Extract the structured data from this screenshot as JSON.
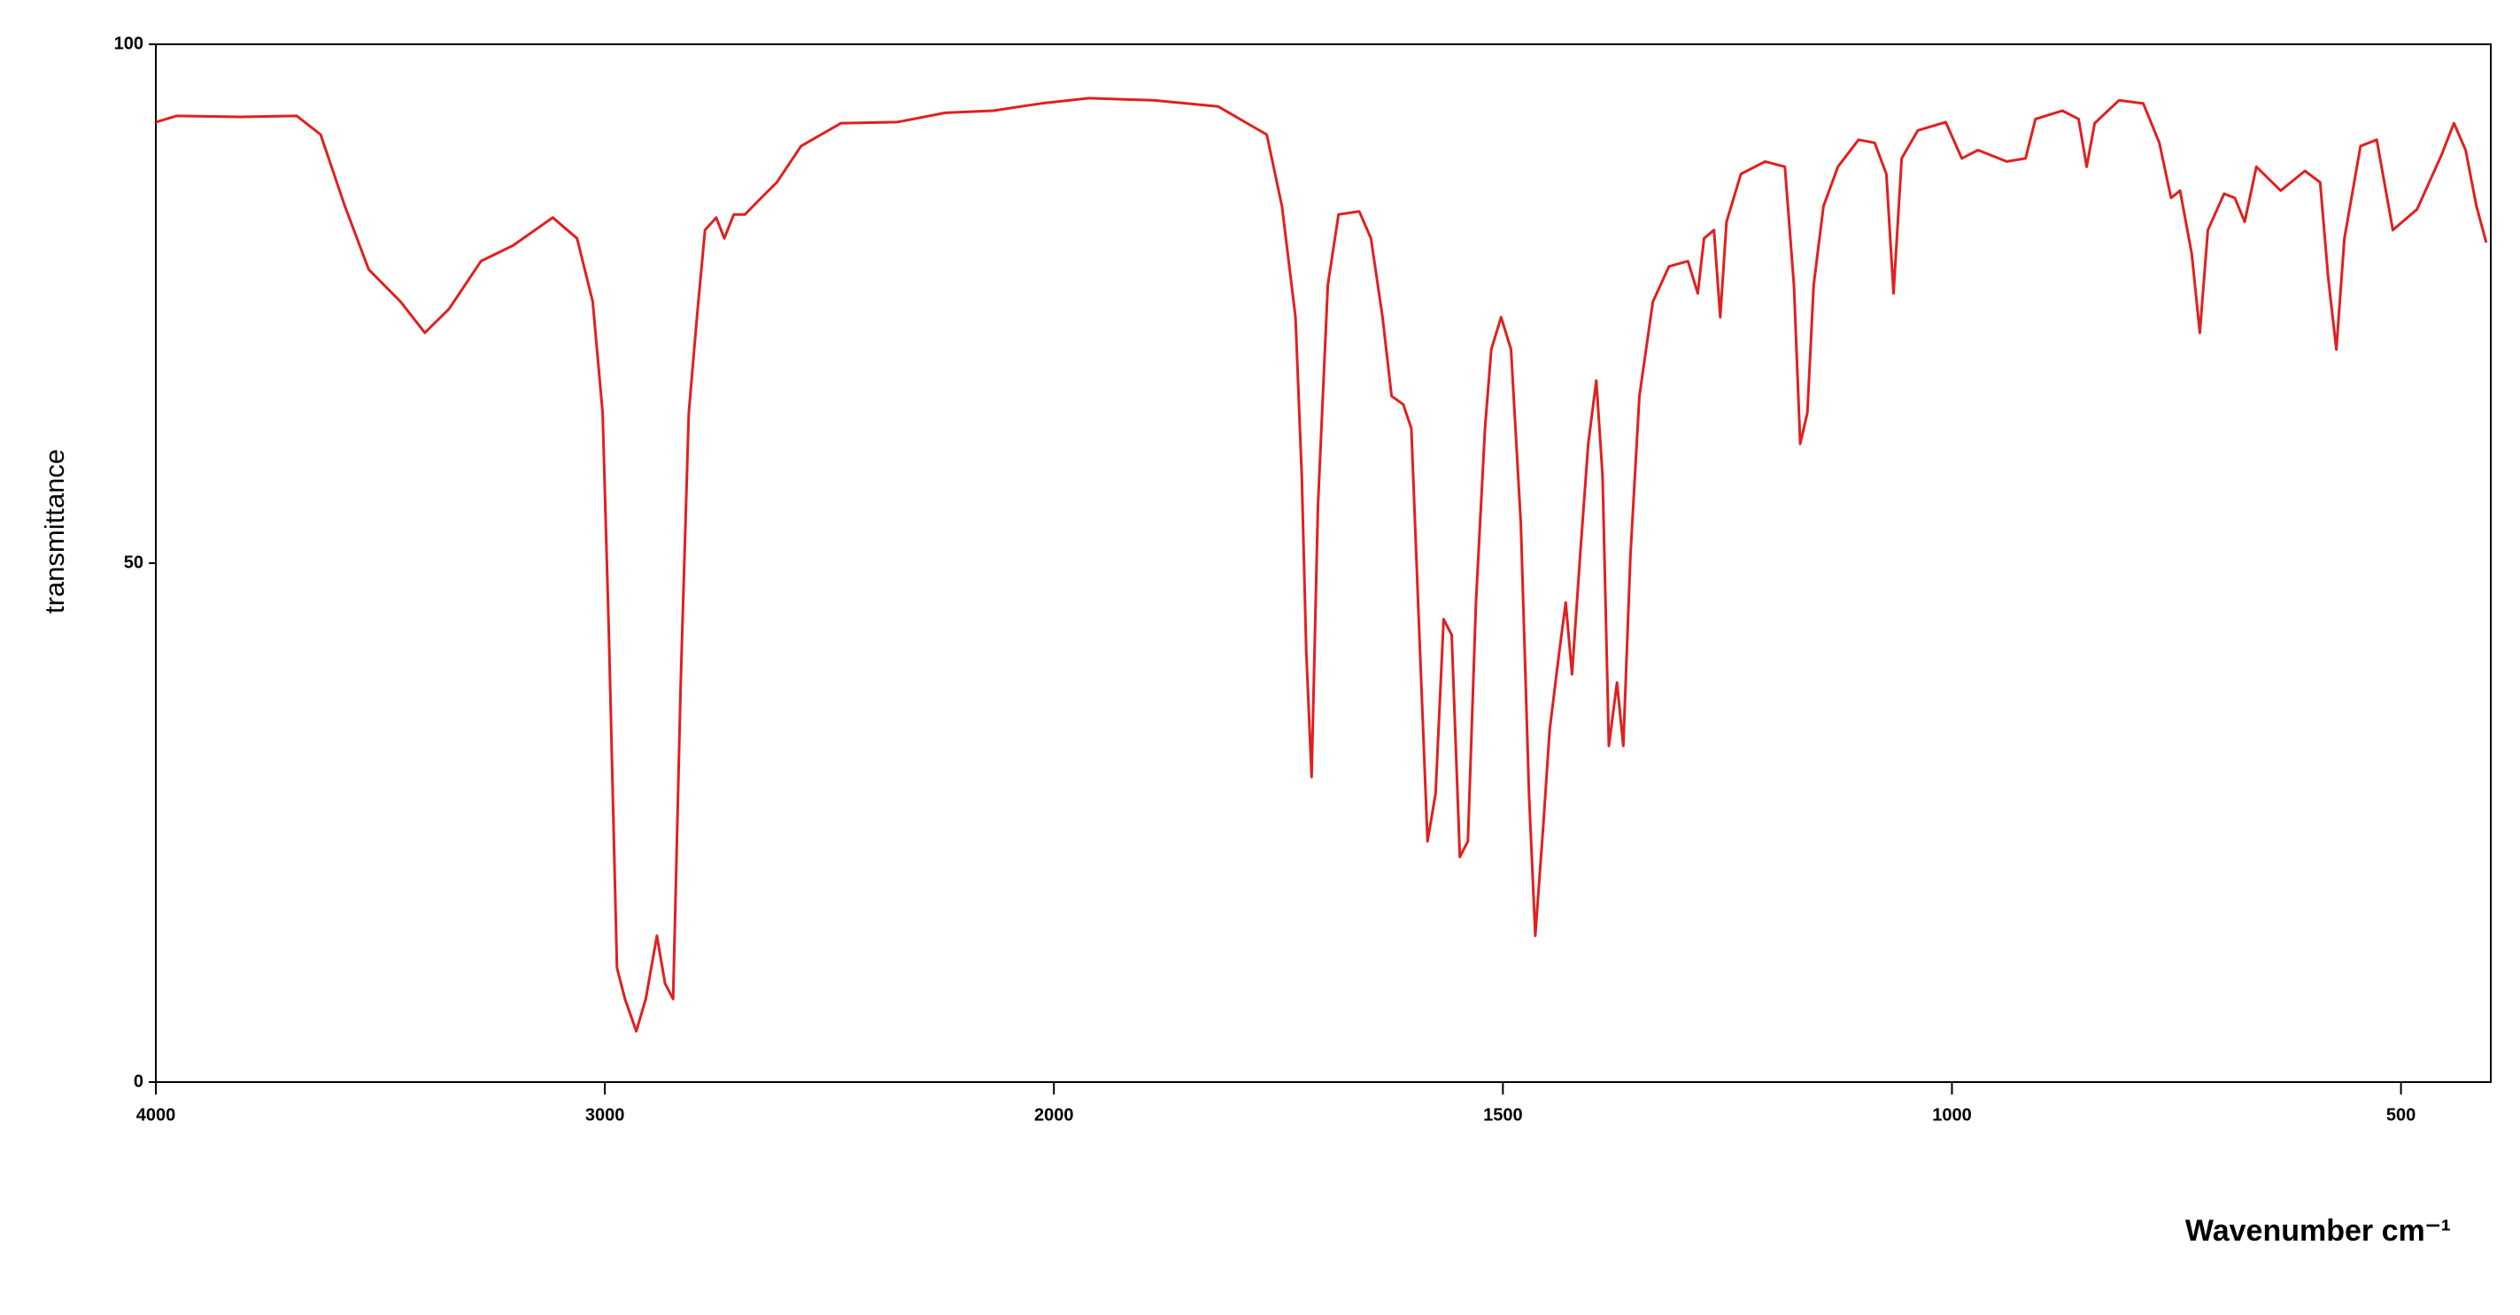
{
  "chart_data": {
    "type": "line",
    "xlabel": "Wavenumber cm⁻¹",
    "ylabel": "transmittance",
    "color": "#e0201f",
    "xlim": [
      4000,
      400
    ],
    "x_scale_change": {
      "at": 2000,
      "factor": 2
    },
    "ylim": [
      0,
      100
    ],
    "xticks": [
      4000,
      3000,
      2000,
      1500,
      1000,
      500
    ],
    "yticks": [
      0,
      50,
      100
    ],
    "x": [
      4000,
      3954,
      3811,
      3686,
      3633,
      3579,
      3526,
      3455,
      3401,
      3347,
      3276,
      3205,
      3116,
      3062,
      3027,
      3005,
      2991,
      2973,
      2955,
      2930,
      2909,
      2884,
      2866,
      2848,
      2831,
      2813,
      2795,
      2777,
      2752,
      2734,
      2713,
      2688,
      2652,
      2617,
      2563,
      2474,
      2349,
      2242,
      2135,
      2028,
      1961,
      1889,
      1817,
      1763,
      1746,
      1731,
      1724,
      1719,
      1713,
      1706,
      1695,
      1683,
      1660,
      1647,
      1634,
      1624,
      1611,
      1602,
      1593,
      1584,
      1575,
      1566,
      1557,
      1548,
      1539,
      1530,
      1520,
      1513,
      1502,
      1491,
      1480,
      1471,
      1464,
      1455,
      1448,
      1437,
      1430,
      1423,
      1414,
      1405,
      1396,
      1389,
      1382,
      1373,
      1366,
      1358,
      1348,
      1333,
      1315,
      1294,
      1283,
      1276,
      1265,
      1258,
      1251,
      1235,
      1208,
      1186,
      1176,
      1169,
      1161,
      1154,
      1143,
      1127,
      1104,
      1086,
      1073,
      1065,
      1056,
      1038,
      1007,
      989,
      971,
      939,
      918,
      907,
      877,
      859,
      850,
      841,
      814,
      787,
      769,
      756,
      746,
      733,
      724,
      715,
      697,
      685,
      674,
      661,
      634,
      607,
      590,
      581,
      572,
      563,
      545,
      527,
      509,
      482,
      455,
      441,
      428,
      416,
      405
    ],
    "values": [
      92.5,
      93.1,
      93.0,
      93.1,
      91.3,
      84.4,
      78.3,
      75.2,
      72.2,
      74.5,
      79.1,
      80.6,
      83.3,
      81.3,
      75.2,
      64.5,
      43.1,
      11.0,
      8.0,
      4.9,
      8.0,
      14.1,
      9.5,
      8.0,
      38.5,
      64.5,
      73.7,
      82.1,
      83.3,
      81.3,
      83.6,
      83.6,
      85.2,
      86.7,
      90.2,
      92.4,
      92.5,
      93.4,
      93.6,
      94.3,
      94.8,
      94.6,
      94.0,
      91.3,
      84.4,
      73.7,
      58.4,
      41.6,
      29.4,
      55.4,
      76.8,
      83.6,
      83.9,
      81.3,
      73.7,
      66.1,
      65.3,
      63.0,
      43.1,
      23.2,
      27.8,
      44.6,
      43.1,
      21.7,
      23.2,
      46.2,
      63.0,
      70.6,
      73.7,
      70.6,
      53.8,
      27.8,
      14.1,
      24.8,
      33.9,
      41.6,
      46.2,
      39.3,
      50.8,
      61.5,
      67.6,
      58.4,
      32.4,
      38.5,
      32.4,
      50.8,
      66.1,
      75.2,
      78.6,
      79.1,
      76.0,
      81.3,
      82.1,
      73.7,
      82.9,
      87.5,
      88.7,
      88.2,
      76.8,
      61.5,
      64.5,
      76.8,
      84.4,
      88.2,
      90.8,
      90.5,
      87.5,
      76.0,
      89.0,
      91.7,
      92.5,
      89.0,
      89.8,
      88.7,
      89.0,
      92.8,
      93.6,
      92.8,
      88.2,
      92.4,
      94.6,
      94.3,
      90.5,
      85.2,
      85.9,
      79.8,
      72.2,
      82.1,
      85.6,
      85.2,
      82.9,
      88.2,
      85.9,
      87.8,
      86.7,
      77.5,
      70.6,
      81.3,
      90.2,
      90.8,
      82.1,
      84.1,
      89.3,
      92.4,
      89.8,
      84.4,
      80.9
    ]
  }
}
